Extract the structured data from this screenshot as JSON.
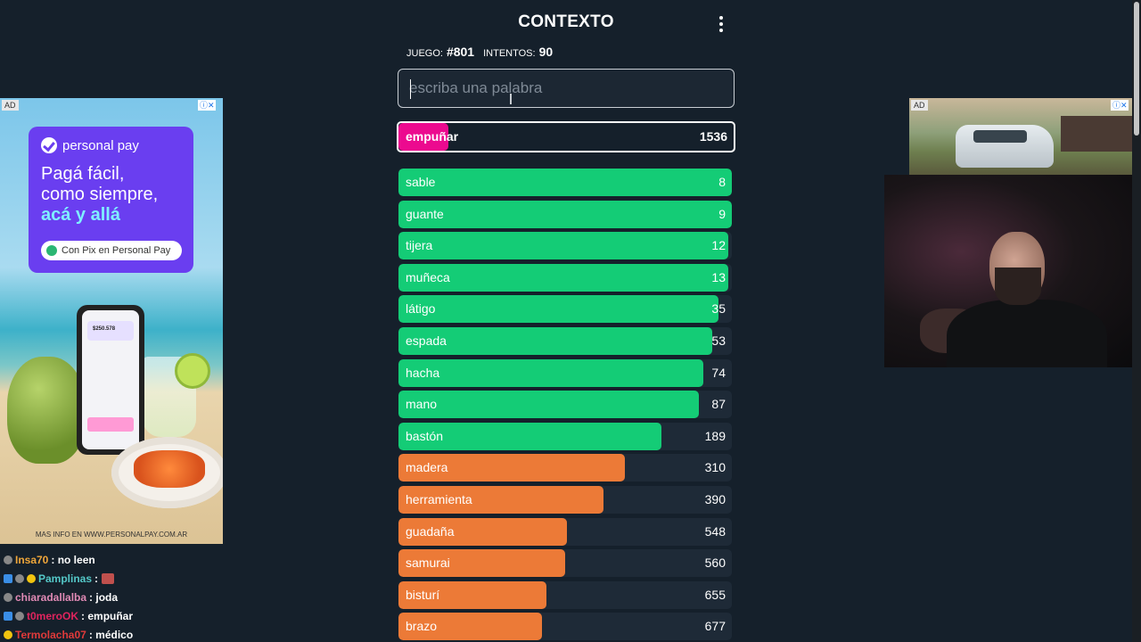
{
  "app": {
    "title": "CONTEXTO"
  },
  "game": {
    "juego_label": "juego:",
    "juego_value": "#801",
    "intentos_label": "intentos:",
    "intentos_value": "90"
  },
  "input": {
    "placeholder": "escriba una palabra",
    "value": ""
  },
  "current_guess": {
    "word": "empuñar",
    "rank": "1536",
    "fill": 0.15,
    "color": "#ec0a8f"
  },
  "guesses": [
    {
      "word": "sable",
      "rank": "8",
      "fill": 1.0,
      "color": "#14cc76"
    },
    {
      "word": "guante",
      "rank": "9",
      "fill": 1.0,
      "color": "#14cc76"
    },
    {
      "word": "tijera",
      "rank": "12",
      "fill": 0.99,
      "color": "#14cc76"
    },
    {
      "word": "muñeca",
      "rank": "13",
      "fill": 0.99,
      "color": "#14cc76"
    },
    {
      "word": "látigo",
      "rank": "35",
      "fill": 0.96,
      "color": "#14cc76"
    },
    {
      "word": "espada",
      "rank": "53",
      "fill": 0.94,
      "color": "#14cc76"
    },
    {
      "word": "hacha",
      "rank": "74",
      "fill": 0.915,
      "color": "#14cc76"
    },
    {
      "word": "mano",
      "rank": "87",
      "fill": 0.9,
      "color": "#14cc76"
    },
    {
      "word": "bastón",
      "rank": "189",
      "fill": 0.79,
      "color": "#14cc76"
    },
    {
      "word": "madera",
      "rank": "310",
      "fill": 0.68,
      "color": "#ec7a37"
    },
    {
      "word": "herramienta",
      "rank": "390",
      "fill": 0.615,
      "color": "#ec7a37"
    },
    {
      "word": "guadaña",
      "rank": "548",
      "fill": 0.505,
      "color": "#ec7a37"
    },
    {
      "word": "samurai",
      "rank": "560",
      "fill": 0.5,
      "color": "#ec7a37"
    },
    {
      "word": "bisturí",
      "rank": "655",
      "fill": 0.445,
      "color": "#ec7a37"
    },
    {
      "word": "brazo",
      "rank": "677",
      "fill": 0.43,
      "color": "#ec7a37"
    }
  ],
  "ads": {
    "tag": "AD",
    "left": {
      "brand": "personal pay",
      "headline_1": "Pagá fácil,",
      "headline_2": "como siempre,",
      "headline_3": "acá y allá",
      "button_text": "Con Pix en Personal Pay",
      "phone_amount": "$250.578",
      "footer": "MAS INFO EN WWW.PERSONALPAY.COM.AR"
    }
  },
  "chat": [
    {
      "user": "Insa70",
      "user_color": "#f0a73a",
      "message": ": no leen"
    },
    {
      "user": "Pamplinas",
      "user_color": "#54c8c8",
      "message": ":"
    },
    {
      "user": "chiaradallalba",
      "user_color": "#e08ab5",
      "message": ": joda"
    },
    {
      "user": "t0meroOK",
      "user_color": "#e0245e",
      "message": ": empuñar"
    },
    {
      "user": "Termolacha07",
      "user_color": "#e03a3a",
      "message": ": médico"
    }
  ]
}
